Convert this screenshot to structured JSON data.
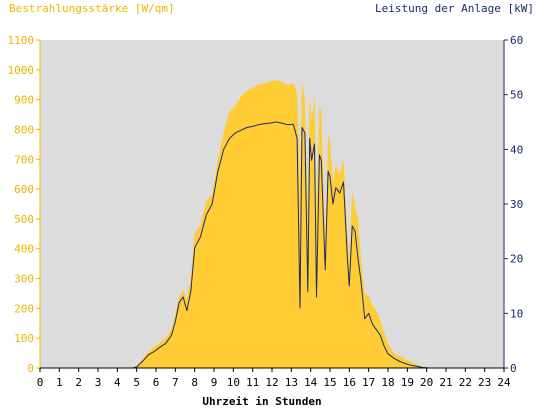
{
  "chart_data": {
    "type": "area",
    "left_axis_title": "Bestrahlungsstärke [W/qm]",
    "right_axis_title": "Leistung der Anlage [kW]",
    "xlabel": "Uhrzeit in Stunden",
    "xlim": [
      0,
      24
    ],
    "ylim_left": [
      0,
      1100
    ],
    "ylim_right": [
      0,
      60
    ],
    "x_ticks": [
      "0",
      "1",
      "2",
      "3",
      "4",
      "5",
      "6",
      "7",
      "8",
      "9",
      "10",
      "11",
      "12",
      "13",
      "14",
      "15",
      "16",
      "17",
      "18",
      "19",
      "20",
      "21",
      "22",
      "23",
      "24"
    ],
    "y_left_ticks": [
      "0",
      "100",
      "200",
      "300",
      "400",
      "500",
      "600",
      "700",
      "800",
      "900",
      "1000",
      "1100"
    ],
    "y_right_ticks": [
      "0",
      "10",
      "20",
      "30",
      "40",
      "50",
      "60"
    ],
    "grid": false,
    "colors": {
      "irradiance": "#ffcc33",
      "power": "#1a2a6c",
      "plot_background": "#dcdcdc",
      "left_axis_text": "#f0b400",
      "right_axis_text": "#1a2a6c"
    },
    "series": [
      {
        "axis": "left",
        "style": "area",
        "x": [
          0,
          4.8,
          5,
          5.3,
          5.6,
          5.9,
          6.2,
          6.5,
          6.8,
          7.0,
          7.2,
          7.4,
          7.6,
          7.8,
          8.0,
          8.3,
          8.6,
          8.9,
          9.2,
          9.5,
          9.8,
          10.1,
          10.4,
          10.7,
          11.0,
          11.3,
          11.6,
          11.9,
          12.2,
          12.5,
          12.8,
          13.1,
          13.3,
          13.45,
          13.55,
          13.7,
          13.85,
          13.95,
          14.05,
          14.2,
          14.3,
          14.45,
          14.55,
          14.75,
          14.9,
          15.0,
          15.15,
          15.3,
          15.5,
          15.7,
          15.9,
          16.0,
          16.15,
          16.3,
          16.45,
          16.6,
          16.8,
          17.0,
          17.2,
          17.4,
          17.6,
          17.8,
          18.0,
          18.3,
          18.6,
          18.9,
          19.2,
          19.5,
          19.8,
          20.0,
          20.1,
          24
        ],
        "y": [
          0,
          0,
          8,
          30,
          55,
          70,
          85,
          100,
          130,
          180,
          240,
          260,
          230,
          300,
          450,
          480,
          560,
          580,
          700,
          790,
          860,
          880,
          910,
          930,
          940,
          950,
          955,
          960,
          965,
          960,
          950,
          955,
          920,
          600,
          960,
          900,
          500,
          920,
          830,
          910,
          500,
          880,
          860,
          420,
          780,
          760,
          620,
          680,
          650,
          700,
          450,
          350,
          600,
          540,
          500,
          360,
          250,
          240,
          210,
          190,
          160,
          120,
          80,
          50,
          40,
          30,
          20,
          12,
          5,
          2,
          0,
          0
        ]
      },
      {
        "axis": "right",
        "style": "line",
        "x": [
          0,
          4.8,
          5,
          5.3,
          5.6,
          5.9,
          6.2,
          6.5,
          6.8,
          7.0,
          7.2,
          7.4,
          7.6,
          7.8,
          8.0,
          8.3,
          8.6,
          8.9,
          9.2,
          9.5,
          9.8,
          10.1,
          10.4,
          10.7,
          11.0,
          11.3,
          11.6,
          11.9,
          12.2,
          12.5,
          12.8,
          13.1,
          13.3,
          13.45,
          13.55,
          13.7,
          13.85,
          13.95,
          14.05,
          14.2,
          14.3,
          14.45,
          14.55,
          14.75,
          14.9,
          15.0,
          15.15,
          15.3,
          15.5,
          15.7,
          15.9,
          16.0,
          16.15,
          16.3,
          16.45,
          16.6,
          16.8,
          17.0,
          17.2,
          17.4,
          17.6,
          17.8,
          18.0,
          18.3,
          18.6,
          18.9,
          19.2,
          19.5,
          19.8,
          20.0,
          20.1,
          24
        ],
        "y": [
          0,
          0,
          0.2,
          1.2,
          2.4,
          3.0,
          3.8,
          4.5,
          6.0,
          8.5,
          12.0,
          13.0,
          10.5,
          14.0,
          22.0,
          24.0,
          28.0,
          30.0,
          36.0,
          40.0,
          42.0,
          43.0,
          43.5,
          44.0,
          44.2,
          44.5,
          44.7,
          44.8,
          45.0,
          44.8,
          44.5,
          44.6,
          42.0,
          11.0,
          44.0,
          43.0,
          14.0,
          42.0,
          38.0,
          41.0,
          13.0,
          39.0,
          38.0,
          18.0,
          36.0,
          35.0,
          30.0,
          33.0,
          32.0,
          34.0,
          20.0,
          15.0,
          26.0,
          25.0,
          20.0,
          16.0,
          9.0,
          10.0,
          8.0,
          7.0,
          6.0,
          4.0,
          2.6,
          1.8,
          1.2,
          0.8,
          0.5,
          0.3,
          0.1,
          0.05,
          0,
          0
        ]
      }
    ]
  }
}
